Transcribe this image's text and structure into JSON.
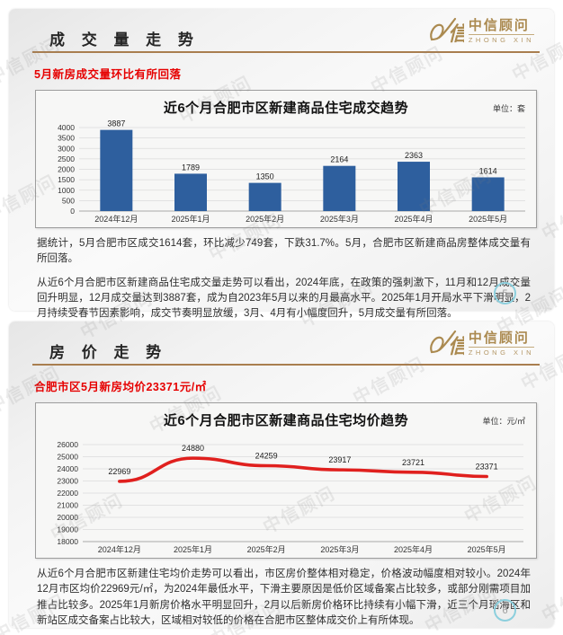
{
  "watermark": {
    "text": "中信顾问"
  },
  "logo": {
    "name": "中信顾问",
    "subname": "ZHONG XIN"
  },
  "colors": {
    "brand_gold": "#ab8a50",
    "alert_red": "#e60000",
    "bar_blue": "#2e5f9e",
    "line_red": "#e0201e",
    "page_badge_ring": "#8ccfdd"
  },
  "slide1": {
    "title": "成 交 量 走 势",
    "subtitle": "5月新房成交量环比有所回落",
    "paragraphs": [
      "据统计，5月合肥市区成交1614套，环比减少749套，下跌31.7%。5月，合肥市区新建商品房整体成交量有所回落。",
      "从近6个月合肥市区新建商品住宅成交量走势可以看出，2024年底，在政策的强刺激下，11月和12月成交量回升明显，12月成交量达到3887套，成为自2023年5月以来的月最高水平。2025年1月开局水平下滑明显，2月持续受春节因素影响，成交节奏明显放缓，3月、4月有小幅度回升，5月成交量有所回落。"
    ],
    "page_number": "5"
  },
  "slide2": {
    "title": "房 价 走 势",
    "subtitle": "合肥市区5月新房均价23371元/㎡",
    "paragraphs": [
      "从近6个月合肥市区新建住宅均价走势可以看出，市区房价整体相对稳定，价格波动幅度相对较小。2024年12月市区均价22969元/㎡，为2024年最低水平，下滑主要原因是低价区域备案占比较多，或部分刚需项目加推占比较多。2025年1月新房价格水平明显回升，2月以后新房价格环比持续有小幅下滑，近三个月瑶海区和新站区成交备案占比较大，区域相对较低的价格在合肥市区整体成交价上有所体现。"
    ],
    "page_number": "6"
  },
  "chart_data": [
    {
      "type": "bar",
      "title": "近6个月合肥市区新建商品住宅成交趋势",
      "unit": "单位：套",
      "categories": [
        "2024年12月",
        "2025年1月",
        "2025年2月",
        "2025年3月",
        "2025年4月",
        "2025年5月"
      ],
      "values": [
        3887,
        1789,
        1350,
        2164,
        2363,
        1614
      ],
      "ylim": [
        0,
        4000
      ],
      "ytick_step": 500,
      "color": "#2e5f9e",
      "grid": true,
      "xlabel": "",
      "ylabel": ""
    },
    {
      "type": "line",
      "title": "近6个月合肥市区新建商品住宅均价趋势",
      "unit": "单位：元/㎡",
      "categories": [
        "2024年12月",
        "2025年1月",
        "2025年2月",
        "2025年3月",
        "2025年4月",
        "2025年5月"
      ],
      "values": [
        22969,
        24880,
        24259,
        23917,
        23721,
        23371
      ],
      "ylim": [
        18000,
        26000
      ],
      "ytick_step": 1000,
      "color": "#e0201e",
      "grid": true,
      "xlabel": "",
      "ylabel": ""
    }
  ]
}
